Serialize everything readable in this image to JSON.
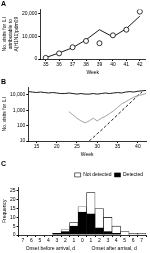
{
  "chart_data": [
    {
      "type": "line",
      "title": "A",
      "x_label": "Week",
      "y_label": [
        "No. visits for ILI",
        "attributable to",
        "A(H1N1)pdm09"
      ],
      "x": [
        35,
        36,
        37,
        38,
        39,
        40,
        41,
        42
      ],
      "series": [
        {
          "color": "#000000",
          "marker": "circle",
          "line_style": "none",
          "values": [
            500,
            2500,
            5200,
            8000,
            7000,
            10500,
            13000,
            21000
          ]
        },
        {
          "color": "#000000",
          "marker": "none",
          "line_style": "solid",
          "values": [
            600,
            2700,
            5000,
            8500,
            13000,
            9800,
            13500,
            19000
          ]
        }
      ],
      "xlim": [
        34.6,
        42.4
      ],
      "xticks": [
        35,
        36,
        37,
        38,
        39,
        40,
        41,
        42
      ],
      "ylim": [
        0,
        22000
      ],
      "yticks": [
        0,
        {
          "value": 10000,
          "label": "10,000"
        },
        {
          "value": 20000,
          "label": "20,000"
        }
      ],
      "grid": false
    },
    {
      "type": "line",
      "title": "B",
      "log": "y",
      "x_label": "Week",
      "y_label": "No. visits for ILI",
      "x": [
        13,
        14,
        15,
        16,
        17,
        18,
        19,
        20,
        21,
        22,
        23,
        24,
        25,
        26,
        27,
        28,
        29,
        30,
        31,
        32,
        33,
        34,
        35,
        36,
        37,
        38,
        39,
        40,
        41,
        42
      ],
      "series": [
        {
          "color": "#000000",
          "marker": "none",
          "line_style": "solid",
          "values": [
            16000,
            15000,
            14000,
            15000,
            14000,
            13000,
            14000,
            13000,
            12000,
            12000,
            13000,
            12000,
            11000,
            12000,
            11000,
            11000,
            12000,
            11000,
            12000,
            13000,
            12000,
            13000,
            14000,
            13000,
            15000,
            16000,
            15000,
            17000,
            18000,
            19000
          ]
        },
        {
          "color": "#999999",
          "marker": "none",
          "line_style": "solid",
          "values": [
            null,
            null,
            null,
            null,
            null,
            null,
            null,
            null,
            null,
            null,
            800,
            500,
            300,
            200,
            150,
            200,
            300,
            200,
            300,
            400,
            600,
            900,
            1500,
            2500,
            3500,
            5000,
            7000,
            9000,
            10000,
            12000
          ]
        },
        {
          "color": "#000000",
          "marker": "none",
          "line_style": "dashed",
          "values": [
            null,
            null,
            null,
            null,
            null,
            null,
            null,
            null,
            null,
            null,
            null,
            null,
            null,
            null,
            null,
            10,
            17,
            30,
            50,
            90,
            160,
            280,
            500,
            900,
            1600,
            2800,
            5000,
            9000,
            15000,
            null
          ]
        }
      ],
      "xlim": [
        13,
        42
      ],
      "xticks": [
        15,
        20,
        25,
        30,
        35,
        40
      ],
      "ylim": [
        10,
        30000
      ],
      "yticks": [
        10,
        100,
        {
          "value": 1000,
          "label": "1,000"
        },
        {
          "value": 10000,
          "label": "10,000"
        }
      ],
      "grid": false
    },
    {
      "type": "bar",
      "title": "C",
      "stacked": true,
      "legend": "top-right",
      "x_label": [
        "Onset before arrival, d",
        "Onset after arrival, d"
      ],
      "y_label": "Frequency",
      "categories": [
        "7",
        "6",
        "5",
        "4",
        "3",
        "2",
        "1",
        "0",
        "1",
        "2",
        "3",
        "4",
        "5",
        "6",
        "7"
      ],
      "series": [
        {
          "name": "Detected",
          "color": "#000000",
          "values": [
            0,
            0,
            0,
            0,
            1,
            2,
            5,
            13,
            12,
            4,
            2,
            1,
            0,
            0,
            0
          ]
        },
        {
          "name": "Not detected",
          "color": "#ffffff",
          "values": [
            0,
            0,
            0,
            0,
            0,
            1,
            2,
            3,
            12,
            11,
            8,
            4,
            2,
            1,
            1
          ]
        }
      ],
      "ylim": [
        0,
        27
      ],
      "yticks": [
        0,
        5,
        10,
        15,
        20,
        25
      ],
      "grid": false
    }
  ]
}
